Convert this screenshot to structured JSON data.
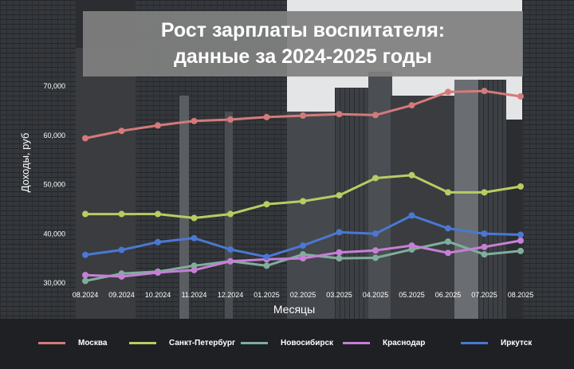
{
  "title": {
    "line1": "Рост зарплаты воспитателя:",
    "line2": "данные за 2024-2025 годы"
  },
  "colors": {
    "background": "#2b2d30",
    "title_box": "#808080",
    "text": "#ffffff"
  },
  "chart_data": {
    "type": "line",
    "title": "Рост зарплаты воспитателя: данные за 2024-2025 годы",
    "xlabel": "Месяцы",
    "ylabel": "Доходы, руб",
    "categories": [
      "08.2024",
      "09.2024",
      "10.2024",
      "11.2024",
      "12.2024",
      "01.2025",
      "02.2025",
      "03.2025",
      "04.2025",
      "05.2025",
      "06.2025",
      "07.2025",
      "08.2025"
    ],
    "ylim": [
      30000,
      70000
    ],
    "yticks": [
      30000,
      40000,
      50000,
      60000,
      70000
    ],
    "ytick_labels": [
      "30,000",
      "40,000",
      "50,000",
      "60,000",
      "70,000"
    ],
    "grid": false,
    "legend_position": "bottom",
    "series": [
      {
        "name": "Москва",
        "color": "#d57a7a",
        "values": [
          59400,
          60900,
          62000,
          62900,
          63200,
          63700,
          64000,
          64300,
          64100,
          66100,
          68800,
          69000,
          67900
        ]
      },
      {
        "name": "Санкт-Петербург",
        "color": "#b8cc62",
        "values": [
          44000,
          44000,
          44000,
          43200,
          44000,
          46000,
          46600,
          47800,
          51300,
          51900,
          48400,
          48400,
          49600
        ]
      },
      {
        "name": "Новосибирск",
        "color": "#7fae9c",
        "values": [
          30400,
          31900,
          32300,
          33500,
          34400,
          33500,
          35800,
          35000,
          35100,
          36800,
          38400,
          35800,
          36500
        ]
      },
      {
        "name": "Краснодар",
        "color": "#c77fd6",
        "values": [
          31600,
          31300,
          32100,
          32600,
          34400,
          34800,
          35000,
          36200,
          36600,
          37600,
          36100,
          37300,
          38600
        ]
      },
      {
        "name": "Иркутск",
        "color": "#4a78d2",
        "values": [
          35700,
          36700,
          38300,
          39100,
          36800,
          35300,
          37600,
          40300,
          40000,
          43700,
          41100,
          40000,
          39800
        ]
      }
    ]
  }
}
